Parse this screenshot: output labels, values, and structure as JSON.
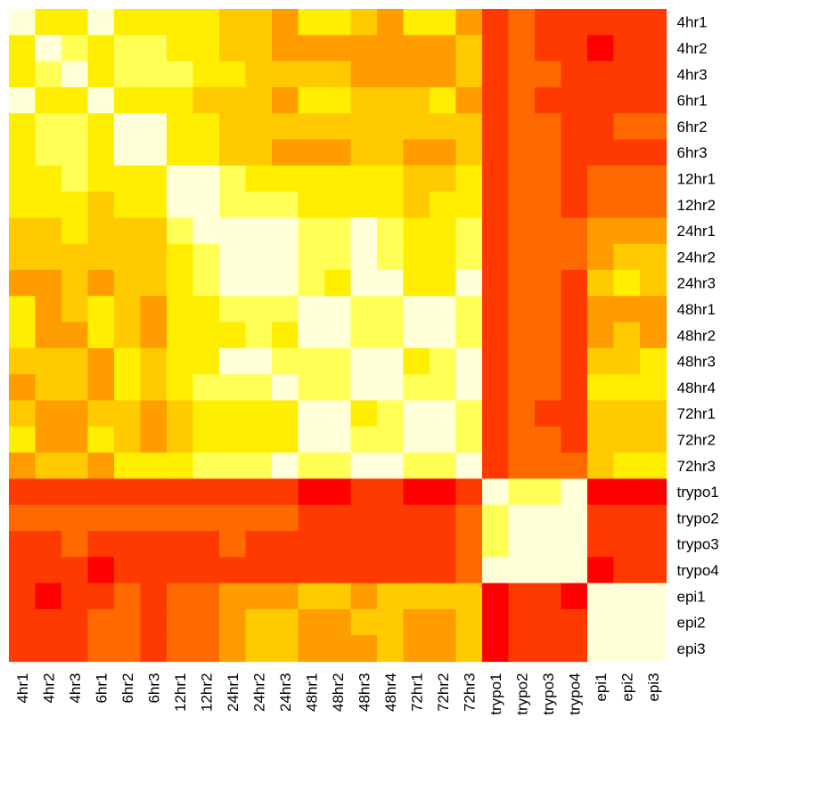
{
  "chart_data": {
    "type": "heatmap",
    "title": "",
    "xlabel": "",
    "ylabel": "",
    "rows": [
      "4hr1",
      "4hr2",
      "4hr3",
      "6hr1",
      "6hr2",
      "6hr3",
      "12hr1",
      "12hr2",
      "24hr1",
      "24hr2",
      "24hr3",
      "48hr1",
      "48hr2",
      "48hr3",
      "48hr4",
      "72hr1",
      "72hr2",
      "72hr3",
      "trypo1",
      "trypo2",
      "trypo3",
      "trypo4",
      "epi1",
      "epi2",
      "epi3"
    ],
    "columns": [
      "4hr1",
      "4hr2",
      "4hr3",
      "6hr1",
      "6hr2",
      "6hr3",
      "12hr1",
      "12hr2",
      "24hr1",
      "24hr2",
      "24hr3",
      "48hr1",
      "48hr2",
      "48hr3",
      "48hr4",
      "72hr1",
      "72hr2",
      "72hr3",
      "trypo1",
      "trypo2",
      "trypo3",
      "trypo4",
      "epi1",
      "epi2",
      "epi3"
    ],
    "color_scale": [
      "#ff0000",
      "#ff3a00",
      "#ff6a00",
      "#ff9c00",
      "#ffcb00",
      "#ffee00",
      "#ffff55",
      "#ffffd8"
    ],
    "values": [
      [
        7,
        5,
        5,
        7,
        5,
        5,
        5,
        5,
        4,
        4,
        3,
        5,
        5,
        4,
        3,
        5,
        5,
        3,
        1,
        2,
        1,
        1,
        1,
        1,
        1
      ],
      [
        5,
        7,
        6,
        5,
        6,
        6,
        5,
        5,
        4,
        4,
        3,
        3,
        3,
        3,
        3,
        3,
        3,
        4,
        1,
        2,
        1,
        1,
        0,
        1,
        1
      ],
      [
        5,
        6,
        7,
        5,
        6,
        6,
        6,
        5,
        5,
        4,
        4,
        4,
        4,
        3,
        3,
        3,
        3,
        4,
        1,
        2,
        2,
        1,
        1,
        1,
        1
      ],
      [
        7,
        5,
        5,
        7,
        5,
        5,
        5,
        4,
        4,
        4,
        3,
        5,
        5,
        4,
        4,
        4,
        5,
        3,
        1,
        2,
        1,
        1,
        1,
        1,
        1
      ],
      [
        5,
        6,
        6,
        5,
        7,
        7,
        5,
        5,
        4,
        4,
        4,
        4,
        4,
        4,
        4,
        4,
        4,
        4,
        1,
        2,
        2,
        1,
        1,
        2,
        2
      ],
      [
        5,
        6,
        6,
        5,
        7,
        7,
        5,
        5,
        4,
        4,
        3,
        3,
        3,
        4,
        4,
        3,
        3,
        4,
        1,
        2,
        2,
        1,
        1,
        1,
        1
      ],
      [
        5,
        5,
        6,
        5,
        5,
        5,
        7,
        7,
        6,
        5,
        5,
        5,
        5,
        5,
        5,
        4,
        4,
        5,
        1,
        2,
        2,
        1,
        2,
        2,
        2
      ],
      [
        5,
        5,
        5,
        4,
        5,
        5,
        7,
        7,
        6,
        6,
        6,
        5,
        5,
        5,
        5,
        4,
        5,
        5,
        1,
        2,
        2,
        1,
        2,
        2,
        2
      ],
      [
        4,
        4,
        5,
        4,
        4,
        4,
        6,
        7,
        7,
        7,
        7,
        6,
        6,
        7,
        6,
        5,
        5,
        6,
        1,
        2,
        2,
        2,
        3,
        3,
        3
      ],
      [
        4,
        4,
        4,
        4,
        4,
        4,
        5,
        6,
        7,
        7,
        7,
        6,
        6,
        7,
        6,
        5,
        5,
        6,
        1,
        2,
        2,
        2,
        3,
        4,
        4
      ],
      [
        3,
        3,
        4,
        3,
        4,
        4,
        5,
        6,
        7,
        7,
        7,
        6,
        5,
        7,
        7,
        5,
        5,
        7,
        1,
        2,
        2,
        1,
        4,
        5,
        4
      ],
      [
        5,
        3,
        4,
        5,
        4,
        3,
        5,
        5,
        6,
        6,
        6,
        7,
        7,
        6,
        6,
        7,
        7,
        6,
        1,
        2,
        2,
        1,
        3,
        3,
        3
      ],
      [
        5,
        3,
        3,
        5,
        4,
        3,
        5,
        5,
        5,
        6,
        5,
        7,
        7,
        6,
        6,
        7,
        7,
        6,
        1,
        2,
        2,
        1,
        3,
        4,
        3
      ],
      [
        4,
        4,
        4,
        3,
        5,
        4,
        5,
        5,
        7,
        7,
        6,
        6,
        6,
        7,
        7,
        5,
        6,
        7,
        1,
        2,
        2,
        1,
        4,
        4,
        5
      ],
      [
        3,
        4,
        4,
        3,
        5,
        4,
        5,
        6,
        6,
        6,
        7,
        6,
        6,
        7,
        7,
        6,
        6,
        7,
        1,
        2,
        2,
        1,
        5,
        5,
        5
      ],
      [
        4,
        3,
        3,
        4,
        4,
        3,
        4,
        5,
        5,
        5,
        5,
        7,
        7,
        5,
        6,
        7,
        7,
        6,
        1,
        2,
        1,
        1,
        4,
        4,
        4
      ],
      [
        5,
        3,
        3,
        5,
        4,
        3,
        4,
        5,
        5,
        5,
        5,
        7,
        7,
        6,
        6,
        7,
        7,
        6,
        1,
        2,
        2,
        1,
        4,
        4,
        4
      ],
      [
        3,
        4,
        4,
        3,
        5,
        5,
        5,
        6,
        6,
        6,
        7,
        6,
        6,
        7,
        7,
        6,
        6,
        7,
        1,
        2,
        2,
        2,
        4,
        5,
        5
      ],
      [
        1,
        1,
        1,
        1,
        1,
        1,
        1,
        1,
        1,
        1,
        1,
        0,
        0,
        1,
        1,
        0,
        0,
        1,
        7,
        6,
        6,
        7,
        0,
        0,
        0
      ],
      [
        2,
        2,
        2,
        2,
        2,
        2,
        2,
        2,
        2,
        2,
        2,
        1,
        1,
        1,
        1,
        1,
        1,
        2,
        6,
        7,
        7,
        7,
        1,
        1,
        1
      ],
      [
        1,
        1,
        2,
        1,
        1,
        1,
        1,
        1,
        2,
        1,
        1,
        1,
        1,
        1,
        1,
        1,
        1,
        2,
        6,
        7,
        7,
        7,
        1,
        1,
        1
      ],
      [
        1,
        1,
        1,
        0,
        1,
        1,
        1,
        1,
        1,
        1,
        1,
        1,
        1,
        1,
        1,
        1,
        1,
        2,
        7,
        7,
        7,
        7,
        0,
        1,
        1
      ],
      [
        1,
        0,
        1,
        1,
        2,
        1,
        2,
        2,
        3,
        3,
        3,
        4,
        4,
        3,
        4,
        4,
        4,
        4,
        0,
        1,
        1,
        0,
        7,
        7,
        7
      ],
      [
        1,
        1,
        1,
        2,
        2,
        1,
        2,
        2,
        3,
        4,
        4,
        3,
        3,
        4,
        4,
        3,
        3,
        4,
        0,
        1,
        1,
        1,
        7,
        7,
        7
      ],
      [
        1,
        1,
        1,
        2,
        2,
        1,
        2,
        2,
        3,
        4,
        4,
        3,
        3,
        3,
        4,
        3,
        3,
        4,
        0,
        1,
        1,
        1,
        7,
        7,
        7
      ]
    ]
  }
}
